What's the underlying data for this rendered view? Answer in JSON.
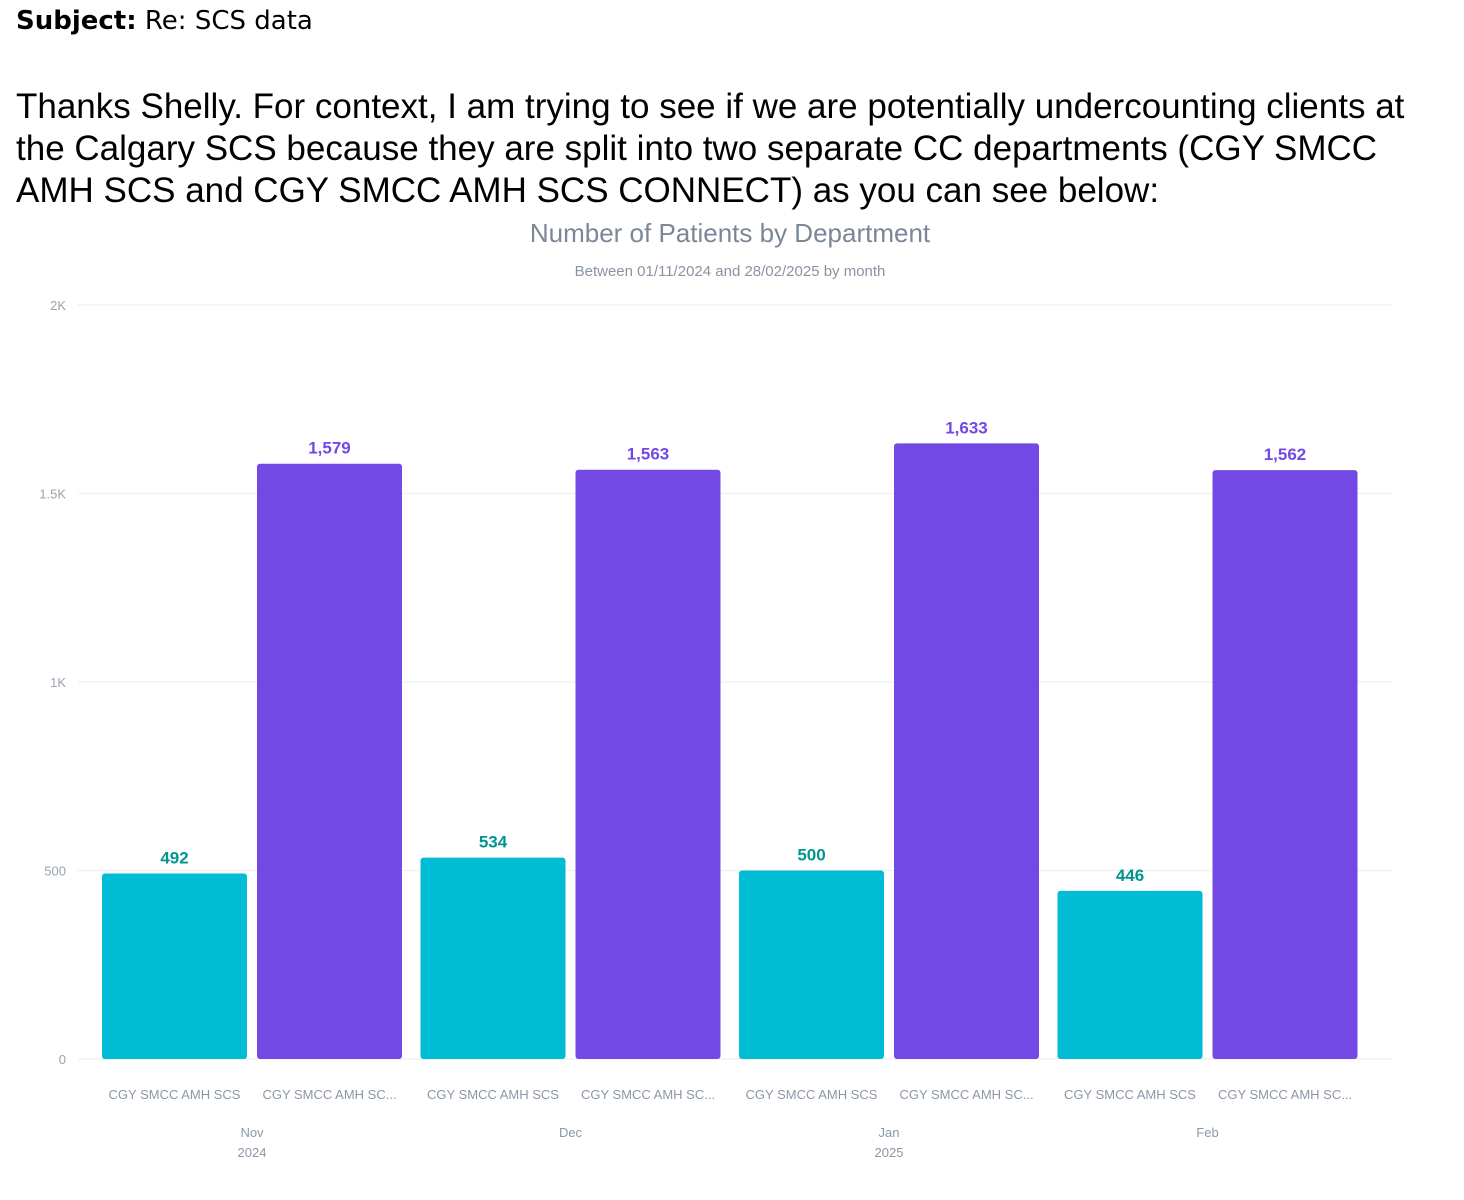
{
  "email": {
    "subject_label": "Subject:",
    "subject": "Re: SCS data",
    "body": "Thanks Shelly. For context, I am trying to see if we are potentially undercounting clients at the Calgary SCS because they are split into two separate CC departments (CGY SMCC AMH SCS and CGY SMCC AMH SCS CONNECT) as you can see below:"
  },
  "chart_data": {
    "type": "bar",
    "title": "Number of Patients by Department",
    "subtitle": "Between 01/11/2024 and 28/02/2025 by month",
    "categories": [
      "Nov",
      "Dec",
      "Jan",
      "Feb"
    ],
    "category_years": [
      "2024",
      "",
      "2025",
      ""
    ],
    "bar_labels": [
      "CGY SMCC AMH SCS",
      "CGY SMCC AMH SC..."
    ],
    "series": [
      {
        "values": [
          492,
          534,
          500,
          446
        ],
        "color": "#00bcd4",
        "label_color": "#00968f"
      },
      {
        "values": [
          1579,
          1563,
          1633,
          1562
        ],
        "color": "#7349e6",
        "label_color": "#7349e6"
      }
    ],
    "value_labels": [
      [
        "492",
        "534",
        "500",
        "446"
      ],
      [
        "1,579",
        "1,563",
        "1,633",
        "1,562"
      ]
    ],
    "yticks": [
      0,
      500,
      1000,
      1500,
      2000
    ],
    "ytick_labels": [
      "0",
      "500",
      "1K",
      "1.5K",
      "2K"
    ],
    "ylim": [
      0,
      2000
    ],
    "grid": true
  }
}
